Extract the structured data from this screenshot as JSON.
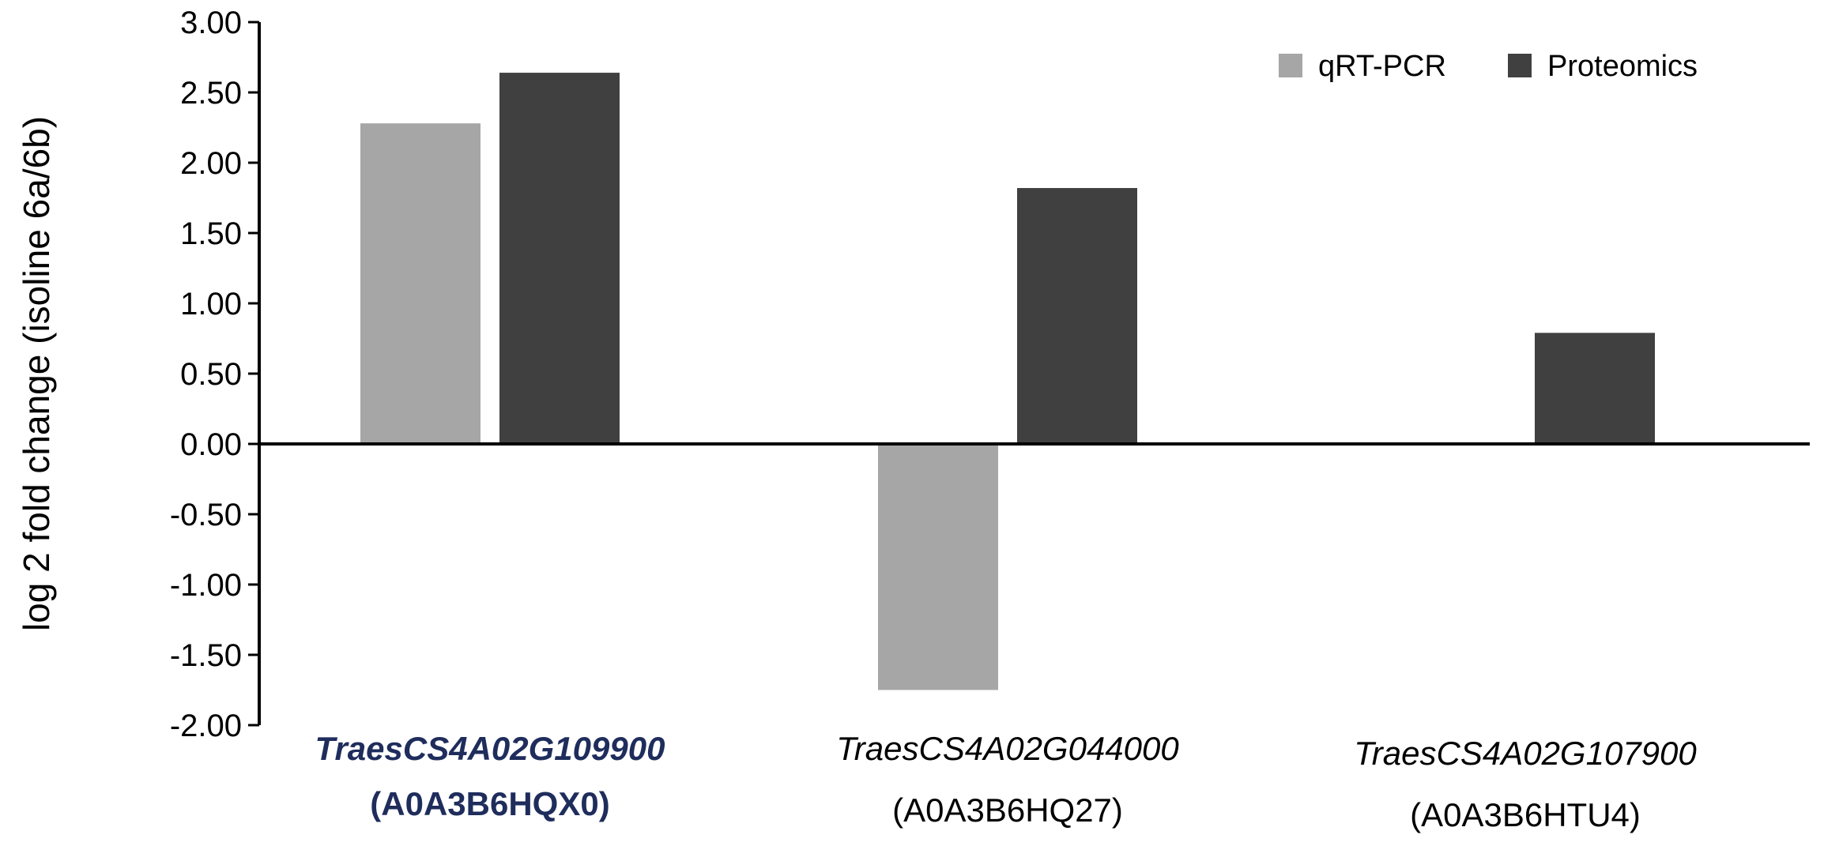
{
  "chart_data": {
    "type": "bar",
    "title": "",
    "ylabel": "log 2 fold change (isoline 6a/6b)",
    "xlabel": "",
    "ylim": [
      -2.0,
      3.0
    ],
    "yticks": [
      "3.00",
      "2.50",
      "2.00",
      "1.50",
      "1.00",
      "0.50",
      "0.00",
      "-0.50",
      "-1.00",
      "-1.50",
      "-2.00"
    ],
    "grid": false,
    "legend_position": "top-right",
    "categories": [
      {
        "gene": "TraesCS4A02G109900",
        "id": "(A0A3B6HQX0)",
        "color": "#1f2d5c",
        "bold": true
      },
      {
        "gene": "TraesCS4A02G044000",
        "id": "(A0A3B6HQ27)",
        "color": "#000000",
        "bold": false
      },
      {
        "gene": "TraesCS4A02G107900",
        "id": "(A0A3B6HTU4)",
        "color": "#000000",
        "bold": false
      }
    ],
    "series": [
      {
        "name": "qRT-PCR",
        "color": "#a6a6a6",
        "values": [
          2.28,
          -1.75,
          0.0
        ]
      },
      {
        "name": "Proteomics",
        "color": "#404040",
        "values": [
          2.64,
          1.82,
          0.79
        ]
      }
    ]
  }
}
